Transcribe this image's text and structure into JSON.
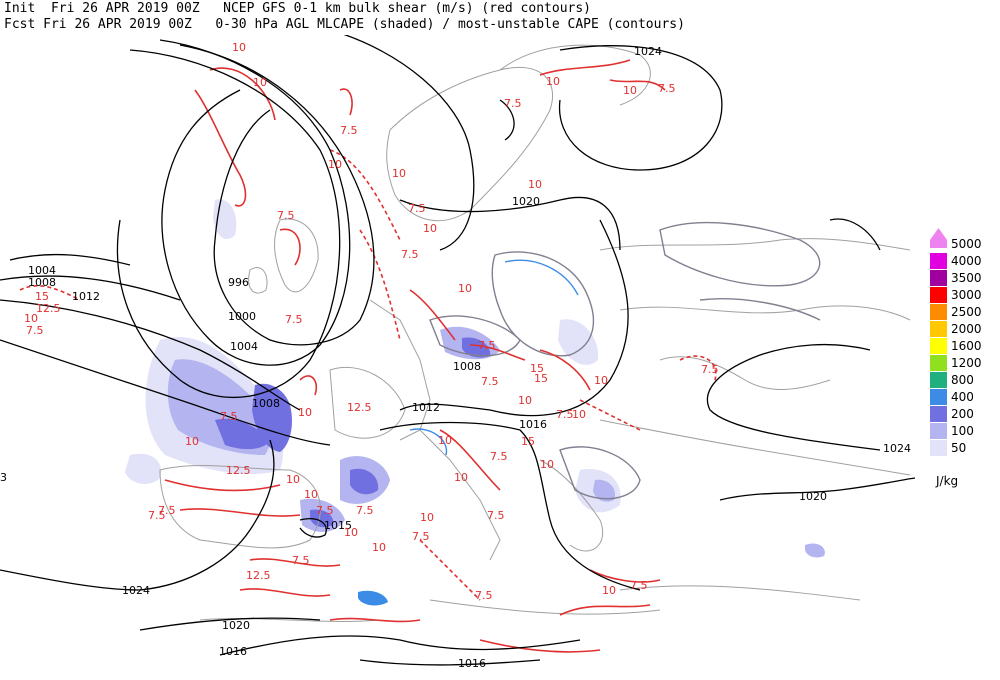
{
  "header": {
    "line1": "Init  Fri 26 APR 2019 00Z   NCEP GFS 0-1 km bulk shear (m/s) (red contours)",
    "line2": "Fcst Fri 26 APR 2019 00Z   0-30 hPa AGL MLCAPE (shaded) / most-unstable CAPE (contours)"
  },
  "legend": {
    "units": "J/kg",
    "levels": [
      {
        "label": "5000",
        "color": "#ee82ee"
      },
      {
        "label": "4000",
        "color": "#e000e0"
      },
      {
        "label": "3500",
        "color": "#a000a0"
      },
      {
        "label": "3000",
        "color": "#ff0000"
      },
      {
        "label": "2500",
        "color": "#ff8c00"
      },
      {
        "label": "2000",
        "color": "#ffc800"
      },
      {
        "label": "1600",
        "color": "#ffff00"
      },
      {
        "label": "1200",
        "color": "#90e020"
      },
      {
        "label": "800",
        "color": "#20b080"
      },
      {
        "label": "400",
        "color": "#3c8ce6"
      },
      {
        "label": "200",
        "color": "#7070e0"
      },
      {
        "label": "100",
        "color": "#b4b4f0"
      },
      {
        "label": "50",
        "color": "#e2e2f8"
      }
    ]
  },
  "isobar_labels": [
    "1024",
    "1020",
    "1004",
    "1008",
    "1012",
    "996",
    "1000",
    "1004",
    "1008",
    "1008",
    "1012",
    "1016",
    "1024",
    "1020",
    "1015",
    "1024",
    "1020",
    "1016",
    "1016",
    "3"
  ],
  "shear_labels": [
    "10",
    "10",
    "7.5",
    "10",
    "7.5",
    "10",
    "7.5",
    "10",
    "10",
    "7.5",
    "7.5",
    "10",
    "7.5",
    "10",
    "15",
    "12.5",
    "10",
    "7.5",
    "12.5",
    "10",
    "7.5",
    "10",
    "10",
    "7.5",
    "7.5",
    "10",
    "12.5",
    "15",
    "10",
    "7.5",
    "7.5",
    "10",
    "15",
    "10",
    "7.5",
    "10",
    "7.5",
    "7.5",
    "10",
    "7.5",
    "12.5",
    "7.5",
    "10",
    "7.5",
    "15",
    "10",
    "7.5",
    "10",
    "10",
    "7.5",
    "10",
    "7.5",
    "7.5",
    "10",
    "7.5"
  ],
  "colors": {
    "isobar": "#000000",
    "shear": "#e03030",
    "coast": "#a0a0a0",
    "mu_cape": "#808090"
  }
}
